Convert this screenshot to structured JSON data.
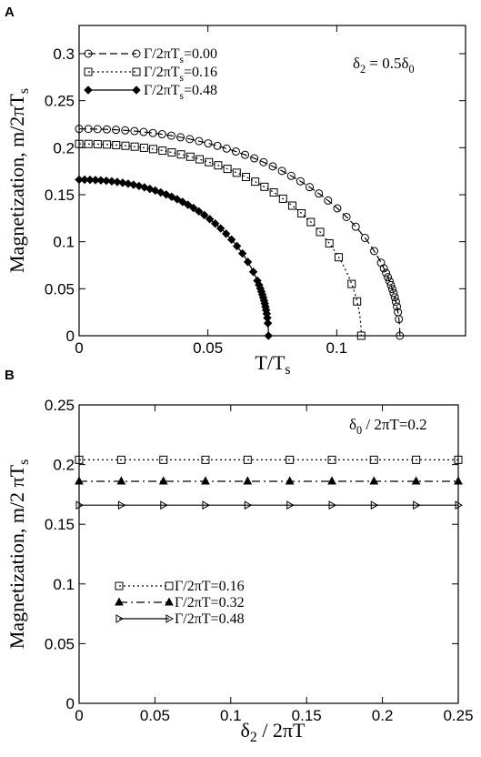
{
  "chart_data": [
    {
      "panel": "A",
      "type": "line",
      "xlabel": "T/T",
      "xlabel_sub": "s",
      "ylabel": "Magnetization, m/2πT",
      "ylabel_sub": "s",
      "xlim": [
        0,
        0.15
      ],
      "ylim": [
        0,
        0.33
      ],
      "xticks": [
        {
          "v": 0,
          "label": "0"
        },
        {
          "v": 0.05,
          "label": "0.05"
        },
        {
          "v": 0.1,
          "label": "0.1"
        }
      ],
      "yticks": [
        {
          "v": 0,
          "label": "0"
        },
        {
          "v": 0.05,
          "label": "0.05"
        },
        {
          "v": 0.1,
          "label": "0.1"
        },
        {
          "v": 0.15,
          "label": "0.15"
        },
        {
          "v": 0.2,
          "label": "0.2"
        },
        {
          "v": 0.25,
          "label": "0.25"
        },
        {
          "v": 0.3,
          "label": "0.3"
        }
      ],
      "annotation": {
        "main": "δ",
        "sub": "2",
        "mid": " = 0.5δ",
        "sub2": "0"
      },
      "legend_placement": "top-left",
      "series": [
        {
          "name": "Γ/2πT",
          "name_sub": "s",
          "name_tail": "=0.00",
          "marker": "circle",
          "dash": "8,4",
          "m0": 0.22,
          "tc": 0.1245
        },
        {
          "name": "Γ/2πT",
          "name_sub": "s",
          "name_tail": "=0.16",
          "marker": "square",
          "dash": "2,3",
          "m0": 0.204,
          "tc": 0.1095
        },
        {
          "name": "Γ/2πT",
          "name_sub": "s",
          "name_tail": "=0.48",
          "marker": "diamond",
          "dash": "",
          "m0": 0.166,
          "tc": 0.0735
        }
      ]
    },
    {
      "panel": "B",
      "type": "line",
      "xlabel": "δ",
      "xlabel_sub": "2",
      "xlabel_tail": " / 2πT",
      "ylabel": "Magnetization, m/2 πT",
      "ylabel_sub": "s",
      "xlim": [
        0,
        0.25
      ],
      "ylim": [
        0,
        0.25
      ],
      "xticks": [
        {
          "v": 0,
          "label": "0"
        },
        {
          "v": 0.05,
          "label": "0.05"
        },
        {
          "v": 0.1,
          "label": "0.1"
        },
        {
          "v": 0.15,
          "label": "0.15"
        },
        {
          "v": 0.2,
          "label": "0.2"
        },
        {
          "v": 0.25,
          "label": "0.25"
        }
      ],
      "yticks": [
        {
          "v": 0,
          "label": "0"
        },
        {
          "v": 0.05,
          "label": "0.05"
        },
        {
          "v": 0.1,
          "label": "0.1"
        },
        {
          "v": 0.15,
          "label": "0.15"
        },
        {
          "v": 0.2,
          "label": "0.2"
        },
        {
          "v": 0.25,
          "label": "0.25"
        }
      ],
      "annotation": {
        "main": "δ",
        "sub": "0",
        "mid": " / 2πT=0.2",
        "sub2": ""
      },
      "legend_placement": "lower-left",
      "series": [
        {
          "name": "Γ/2πT=0.16",
          "marker": "square",
          "dash": "2,3",
          "y": 0.204,
          "x": [
            0,
            0.0278,
            0.0556,
            0.0833,
            0.1111,
            0.1389,
            0.1667,
            0.1944,
            0.2222,
            0.25
          ]
        },
        {
          "name": "Γ/2πT=0.32",
          "marker": "triangle-up",
          "dash": "9,4,2,4",
          "y": 0.186,
          "x": [
            0,
            0.0278,
            0.0556,
            0.0833,
            0.1111,
            0.1389,
            0.1667,
            0.1944,
            0.2222,
            0.25
          ]
        },
        {
          "name": "Γ/2πT=0.48",
          "marker": "triangle-right",
          "dash": "",
          "y": 0.166,
          "x": [
            0,
            0.0278,
            0.0556,
            0.0833,
            0.1111,
            0.1389,
            0.1667,
            0.1944,
            0.2222,
            0.25
          ]
        }
      ]
    }
  ]
}
